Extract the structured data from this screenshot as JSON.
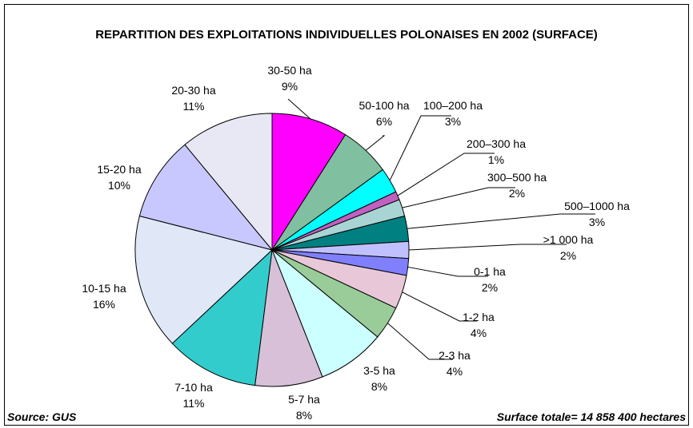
{
  "chart_data": {
    "type": "pie",
    "title": "REPARTITION DES EXPLOITATIONS INDIVIDUELLES POLONAISES EN 2002 (SURFACE)",
    "categories": [
      "30-50 ha",
      "50-100 ha",
      "100–200 ha",
      "200–300 ha",
      "300–500 ha",
      "500–1000 ha",
      ">1 000 ha",
      "0-1 ha",
      "1-2 ha",
      "2-3 ha",
      "3-5 ha",
      "5-7 ha",
      "7-10 ha",
      "10-15 ha",
      "15-20 ha",
      "20-30 ha"
    ],
    "values": [
      9,
      6,
      3,
      1,
      2,
      3,
      2,
      2,
      4,
      4,
      8,
      8,
      11,
      16,
      10,
      11
    ],
    "value_labels": [
      "9%",
      "6%",
      "3%",
      "1%",
      "2%",
      "3%",
      "2%",
      "2%",
      "4%",
      "4%",
      "8%",
      "8%",
      "11%",
      "16%",
      "10%",
      "11%"
    ],
    "colors": [
      "#ff00ff",
      "#80bf9f",
      "#00ffff",
      "#c060c0",
      "#a8d4d4",
      "#008080",
      "#c0c0ff",
      "#8080ff",
      "#e8c8d8",
      "#99cc99",
      "#ccffff",
      "#d8c0d8",
      "#33cccc",
      "#e0e8f8",
      "#c8c8ff",
      "#e8e8f4"
    ],
    "source": "Source: GUS",
    "note": "Surface totale= 14 858 400 hectares"
  }
}
